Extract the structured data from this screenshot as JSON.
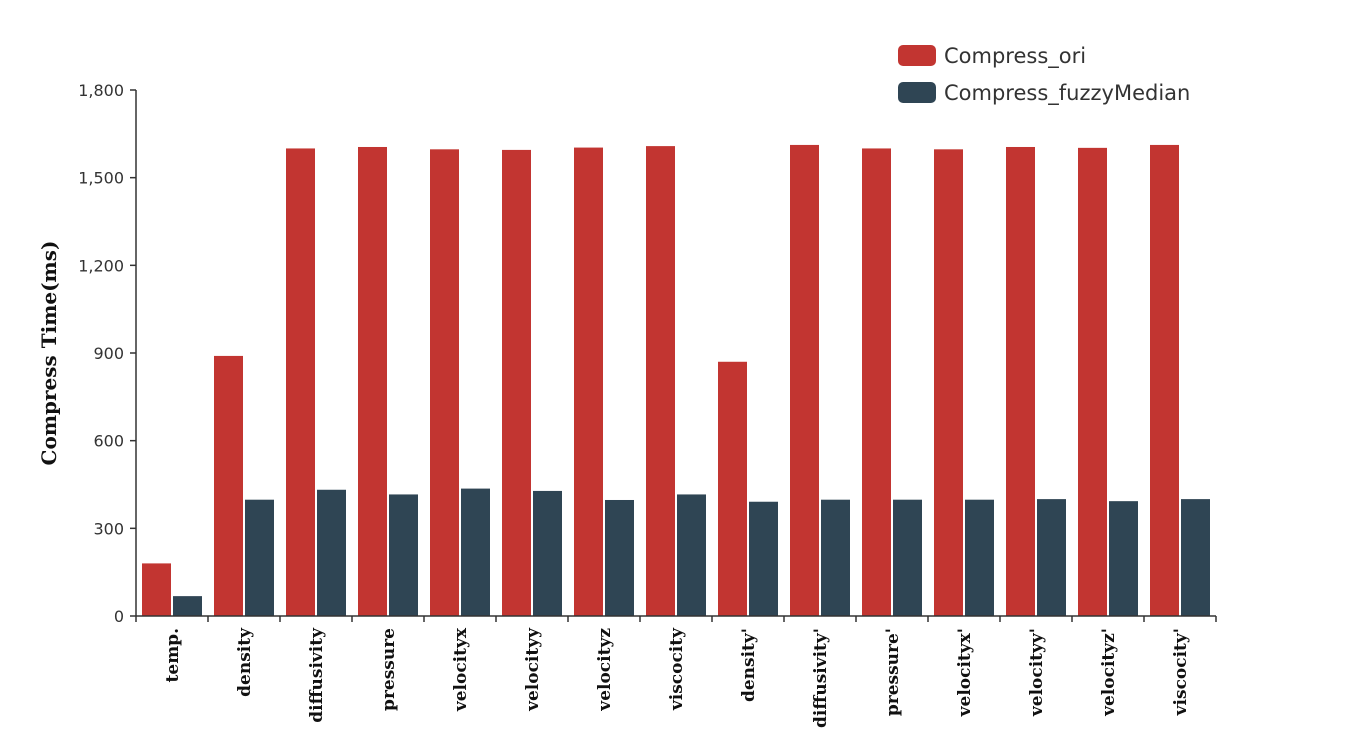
{
  "chart_data": {
    "type": "bar",
    "ylabel": "Compress Time(ms)",
    "xlabel": "",
    "ylim": [
      0,
      1800
    ],
    "yticks": [
      0,
      300,
      600,
      900,
      1200,
      1500,
      1800
    ],
    "ytick_labels": [
      "0",
      "300",
      "600",
      "900",
      "1,200",
      "1,500",
      "1,800"
    ],
    "categories": [
      "temp.",
      "density",
      "diffusivity",
      "pressure",
      "velocityx",
      "velocityy",
      "velocityz",
      "viscocity",
      "density'",
      "diffusivity'",
      "pressure'",
      "velocityx'",
      "velocityy'",
      "velocityz'",
      "viscocity'"
    ],
    "series": [
      {
        "name": "Compress_ori",
        "color": "#c23531",
        "values": [
          180,
          890,
          1600,
          1605,
          1597,
          1595,
          1603,
          1608,
          870,
          1612,
          1600,
          1597,
          1605,
          1602,
          1612
        ]
      },
      {
        "name": "Compress_fuzzyMedian",
        "color": "#2f4554",
        "values": [
          68,
          398,
          432,
          416,
          436,
          428,
          397,
          416,
          391,
          398,
          398,
          398,
          400,
          393,
          400
        ]
      }
    ],
    "legend_position": "top-right",
    "grid": false
  }
}
